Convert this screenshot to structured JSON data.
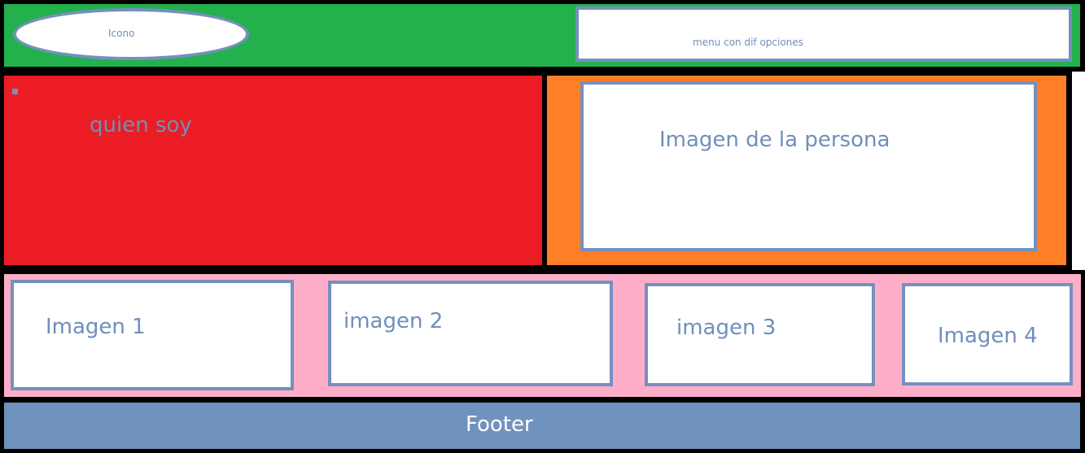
{
  "header": {
    "bg": "#23b14d",
    "logo_label": "Icono",
    "menu_label": "menu con dif opciones"
  },
  "about": {
    "bg": "#ec1c24",
    "text": "quien soy"
  },
  "photo": {
    "bg": "#ff7f27",
    "label": "Imagen de la persona"
  },
  "gallery": {
    "bg": "#ffaec9",
    "items": [
      {
        "label": "Imagen 1"
      },
      {
        "label": "imagen 2"
      },
      {
        "label": "imagen 3"
      },
      {
        "label": "Imagen 4"
      }
    ]
  },
  "footer": {
    "bg": "#7092be",
    "text": "Footer"
  },
  "colors": {
    "border": "#000000",
    "box_border": "#7590bd",
    "label_text": "#6f8fbb"
  }
}
